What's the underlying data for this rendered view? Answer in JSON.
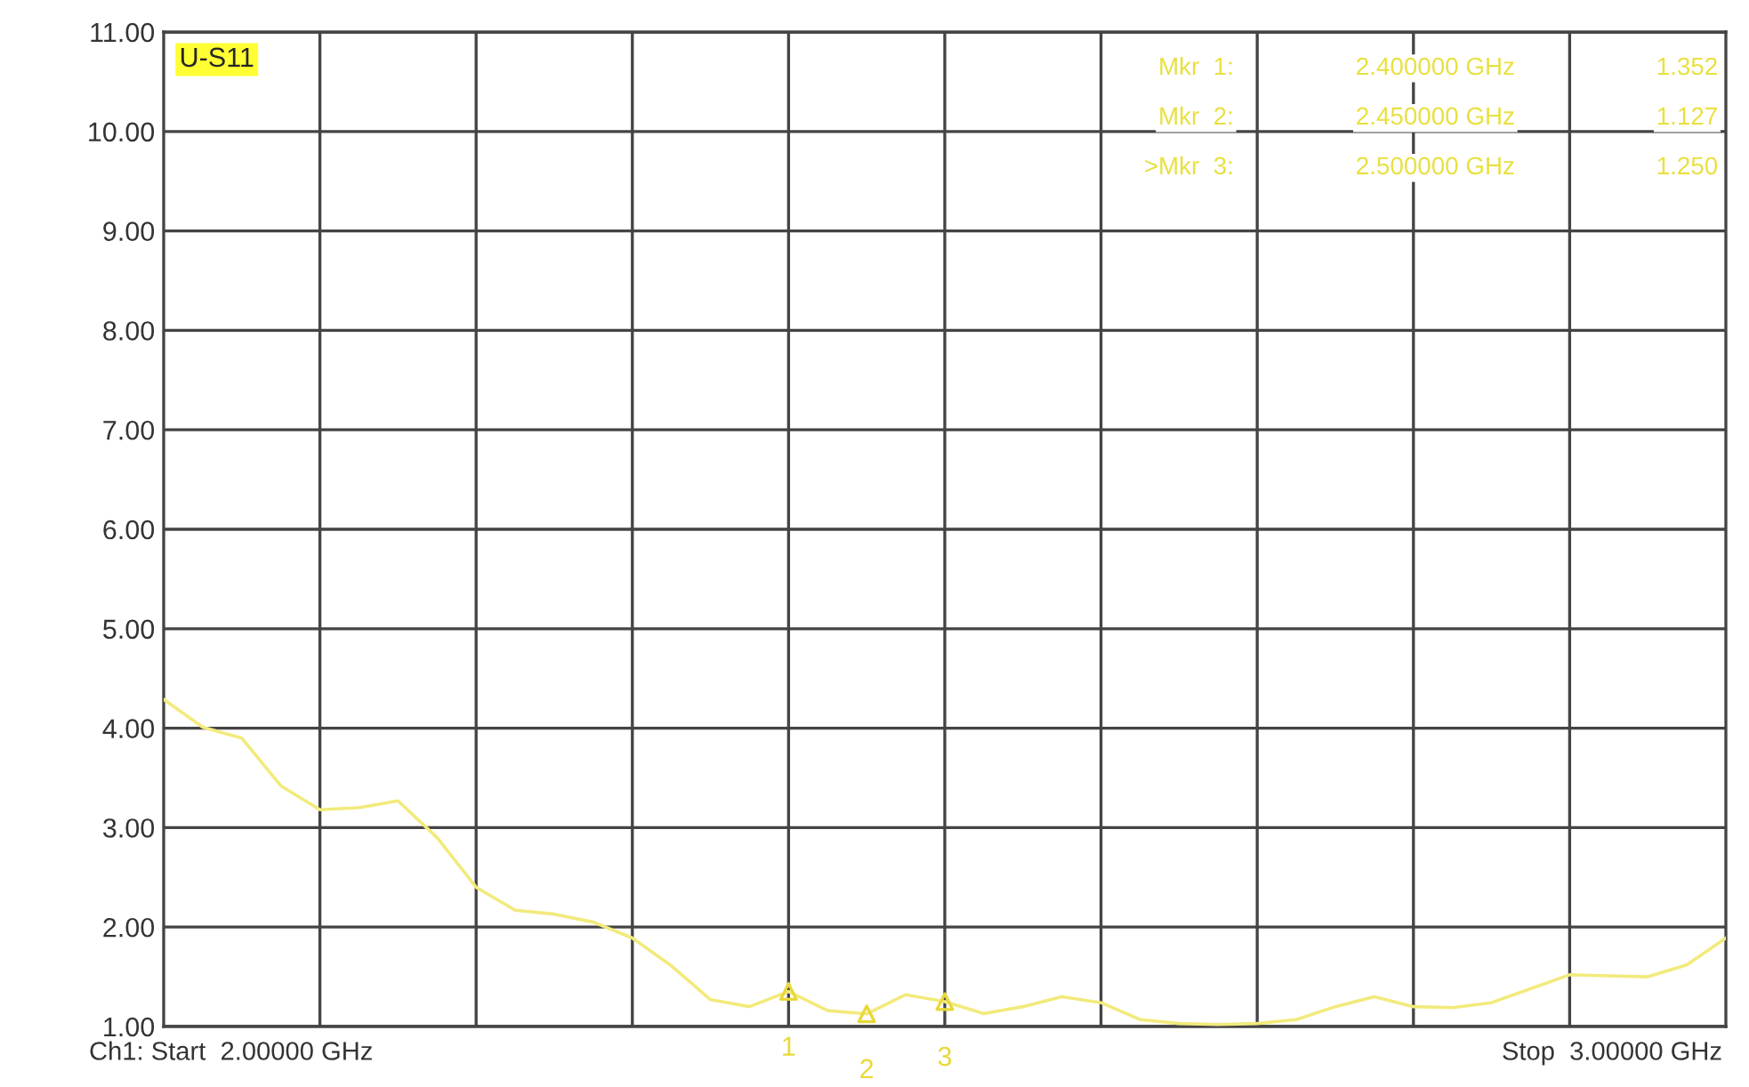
{
  "chart_data": {
    "type": "line",
    "title": "U-S11",
    "categories": [
      null,
      null,
      null,
      null,
      null,
      null,
      null,
      null,
      null,
      null,
      null,
      null,
      null,
      null,
      null,
      null,
      null,
      null,
      null,
      null,
      null,
      null,
      null,
      null,
      null,
      null,
      null,
      null,
      null,
      null,
      null,
      null,
      null,
      null,
      null,
      null,
      null,
      null,
      null,
      null,
      null
    ],
    "series": [
      {
        "color": "#f2ea7c",
        "values": [
          4.29,
          4.01,
          3.9,
          3.42,
          3.18,
          3.2,
          3.27,
          2.9,
          2.4,
          2.17,
          2.13,
          2.05,
          1.89,
          1.61,
          1.27,
          1.2,
          1.352,
          1.16,
          1.127,
          1.32,
          1.25,
          1.13,
          1.2,
          1.3,
          1.24,
          1.07,
          1.03,
          1.02,
          1.03,
          1.07,
          1.2,
          1.3,
          1.2,
          1.19,
          1.24,
          1.38,
          1.52,
          1.51,
          1.5,
          1.62,
          1.89
        ]
      },
      {
        "type": "scatter",
        "marker": "triangle",
        "color": "#e8d83a",
        "values": [
          null,
          null,
          null,
          null,
          null,
          null,
          null,
          null,
          null,
          null,
          null,
          null,
          null,
          null,
          null,
          null,
          1.352,
          null,
          1.127,
          null,
          1.25,
          null,
          null,
          null,
          null,
          null,
          null,
          null,
          null,
          null,
          null,
          null,
          null,
          null,
          null,
          null,
          null,
          null,
          null,
          null,
          null
        ]
      }
    ],
    "ylim": [
      1,
      11
    ],
    "yticks": [
      {
        "value": 1,
        "label": "1.00"
      },
      {
        "value": 2,
        "label": "2.00"
      },
      {
        "value": 3,
        "label": "3.00"
      },
      {
        "value": 4,
        "label": "4.00"
      },
      {
        "value": 5,
        "label": "5.00"
      },
      {
        "value": 6,
        "label": "6.00"
      },
      {
        "value": 7,
        "label": "7.00"
      },
      {
        "value": 8,
        "label": "8.00"
      },
      {
        "value": 9,
        "label": "9.00"
      },
      {
        "value": 10,
        "label": "10.00"
      },
      {
        "value": 11,
        "label": "11.00"
      }
    ],
    "grid": true,
    "marker": "none",
    "line_style": "solid",
    "annotations": [
      "1",
      "2",
      "3",
      "Mkr  1:",
      "2.400000 GHz",
      "1.352",
      "Mkr  2:",
      "2.450000 GHz",
      "1.127",
      ">Mkr  3:",
      "2.500000 GHz",
      "1.250",
      "Ch1: Start  2.00000 GHz",
      "Stop  3.00000 GHz"
    ]
  }
}
